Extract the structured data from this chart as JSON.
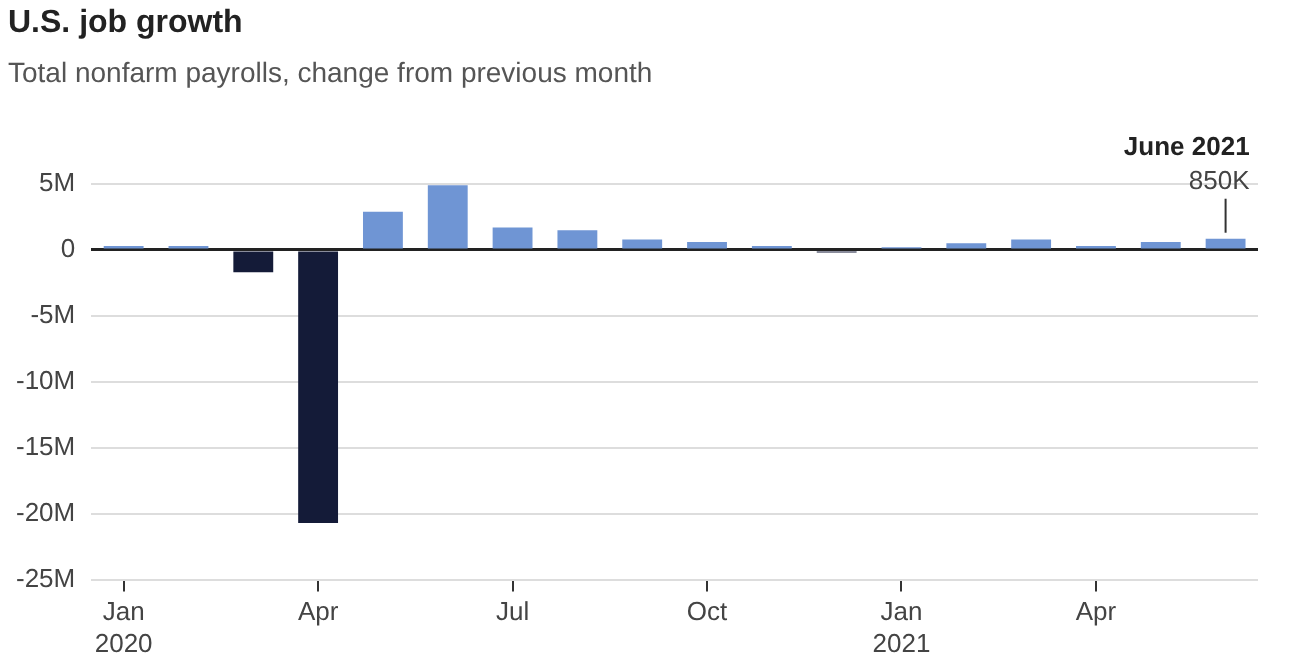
{
  "chart_data": {
    "type": "bar",
    "title": "U.S. job growth",
    "subtitle": "Total nonfarm payrolls, change from previous month",
    "categories": [
      "Jan 2020",
      null,
      null,
      "Apr",
      null,
      null,
      "Jul",
      null,
      null,
      "Oct",
      null,
      null,
      "Jan 2021",
      null,
      null,
      "Apr",
      null,
      null
    ],
    "values": [
      300000,
      300000,
      -1700000,
      -20700000,
      2900000,
      4900000,
      1700000,
      1500000,
      800000,
      600000,
      300000,
      -200000,
      200000,
      500000,
      800000,
      300000,
      600000,
      850000
    ],
    "colors": [
      "#6f95d4",
      "#6f95d4",
      "#141b38",
      "#141b38",
      "#6f95d4",
      "#6f95d4",
      "#6f95d4",
      "#6f95d4",
      "#6f95d4",
      "#6f95d4",
      "#6f95d4",
      "#141b38",
      "#6f95d4",
      "#6f95d4",
      "#6f95d4",
      "#6f95d4",
      "#6f95d4",
      "#6f95d4"
    ],
    "value_labels": [
      null,
      null,
      null,
      null,
      null,
      null,
      null,
      null,
      null,
      null,
      null,
      null,
      null,
      null,
      null,
      null,
      null,
      "850K"
    ],
    "annotations": [
      "June 2021"
    ],
    "ylim": [
      -25000000,
      5000000
    ],
    "yticks": [
      {
        "value": 5000000,
        "label": "5M"
      },
      0,
      {
        "value": -5000000,
        "label": "-5M"
      },
      {
        "value": -10000000,
        "label": "-10M"
      },
      {
        "value": -15000000,
        "label": "-15M"
      },
      {
        "value": -20000000,
        "label": "-20M"
      },
      {
        "value": -25000000,
        "label": "-25M"
      }
    ],
    "grid": "y"
  }
}
